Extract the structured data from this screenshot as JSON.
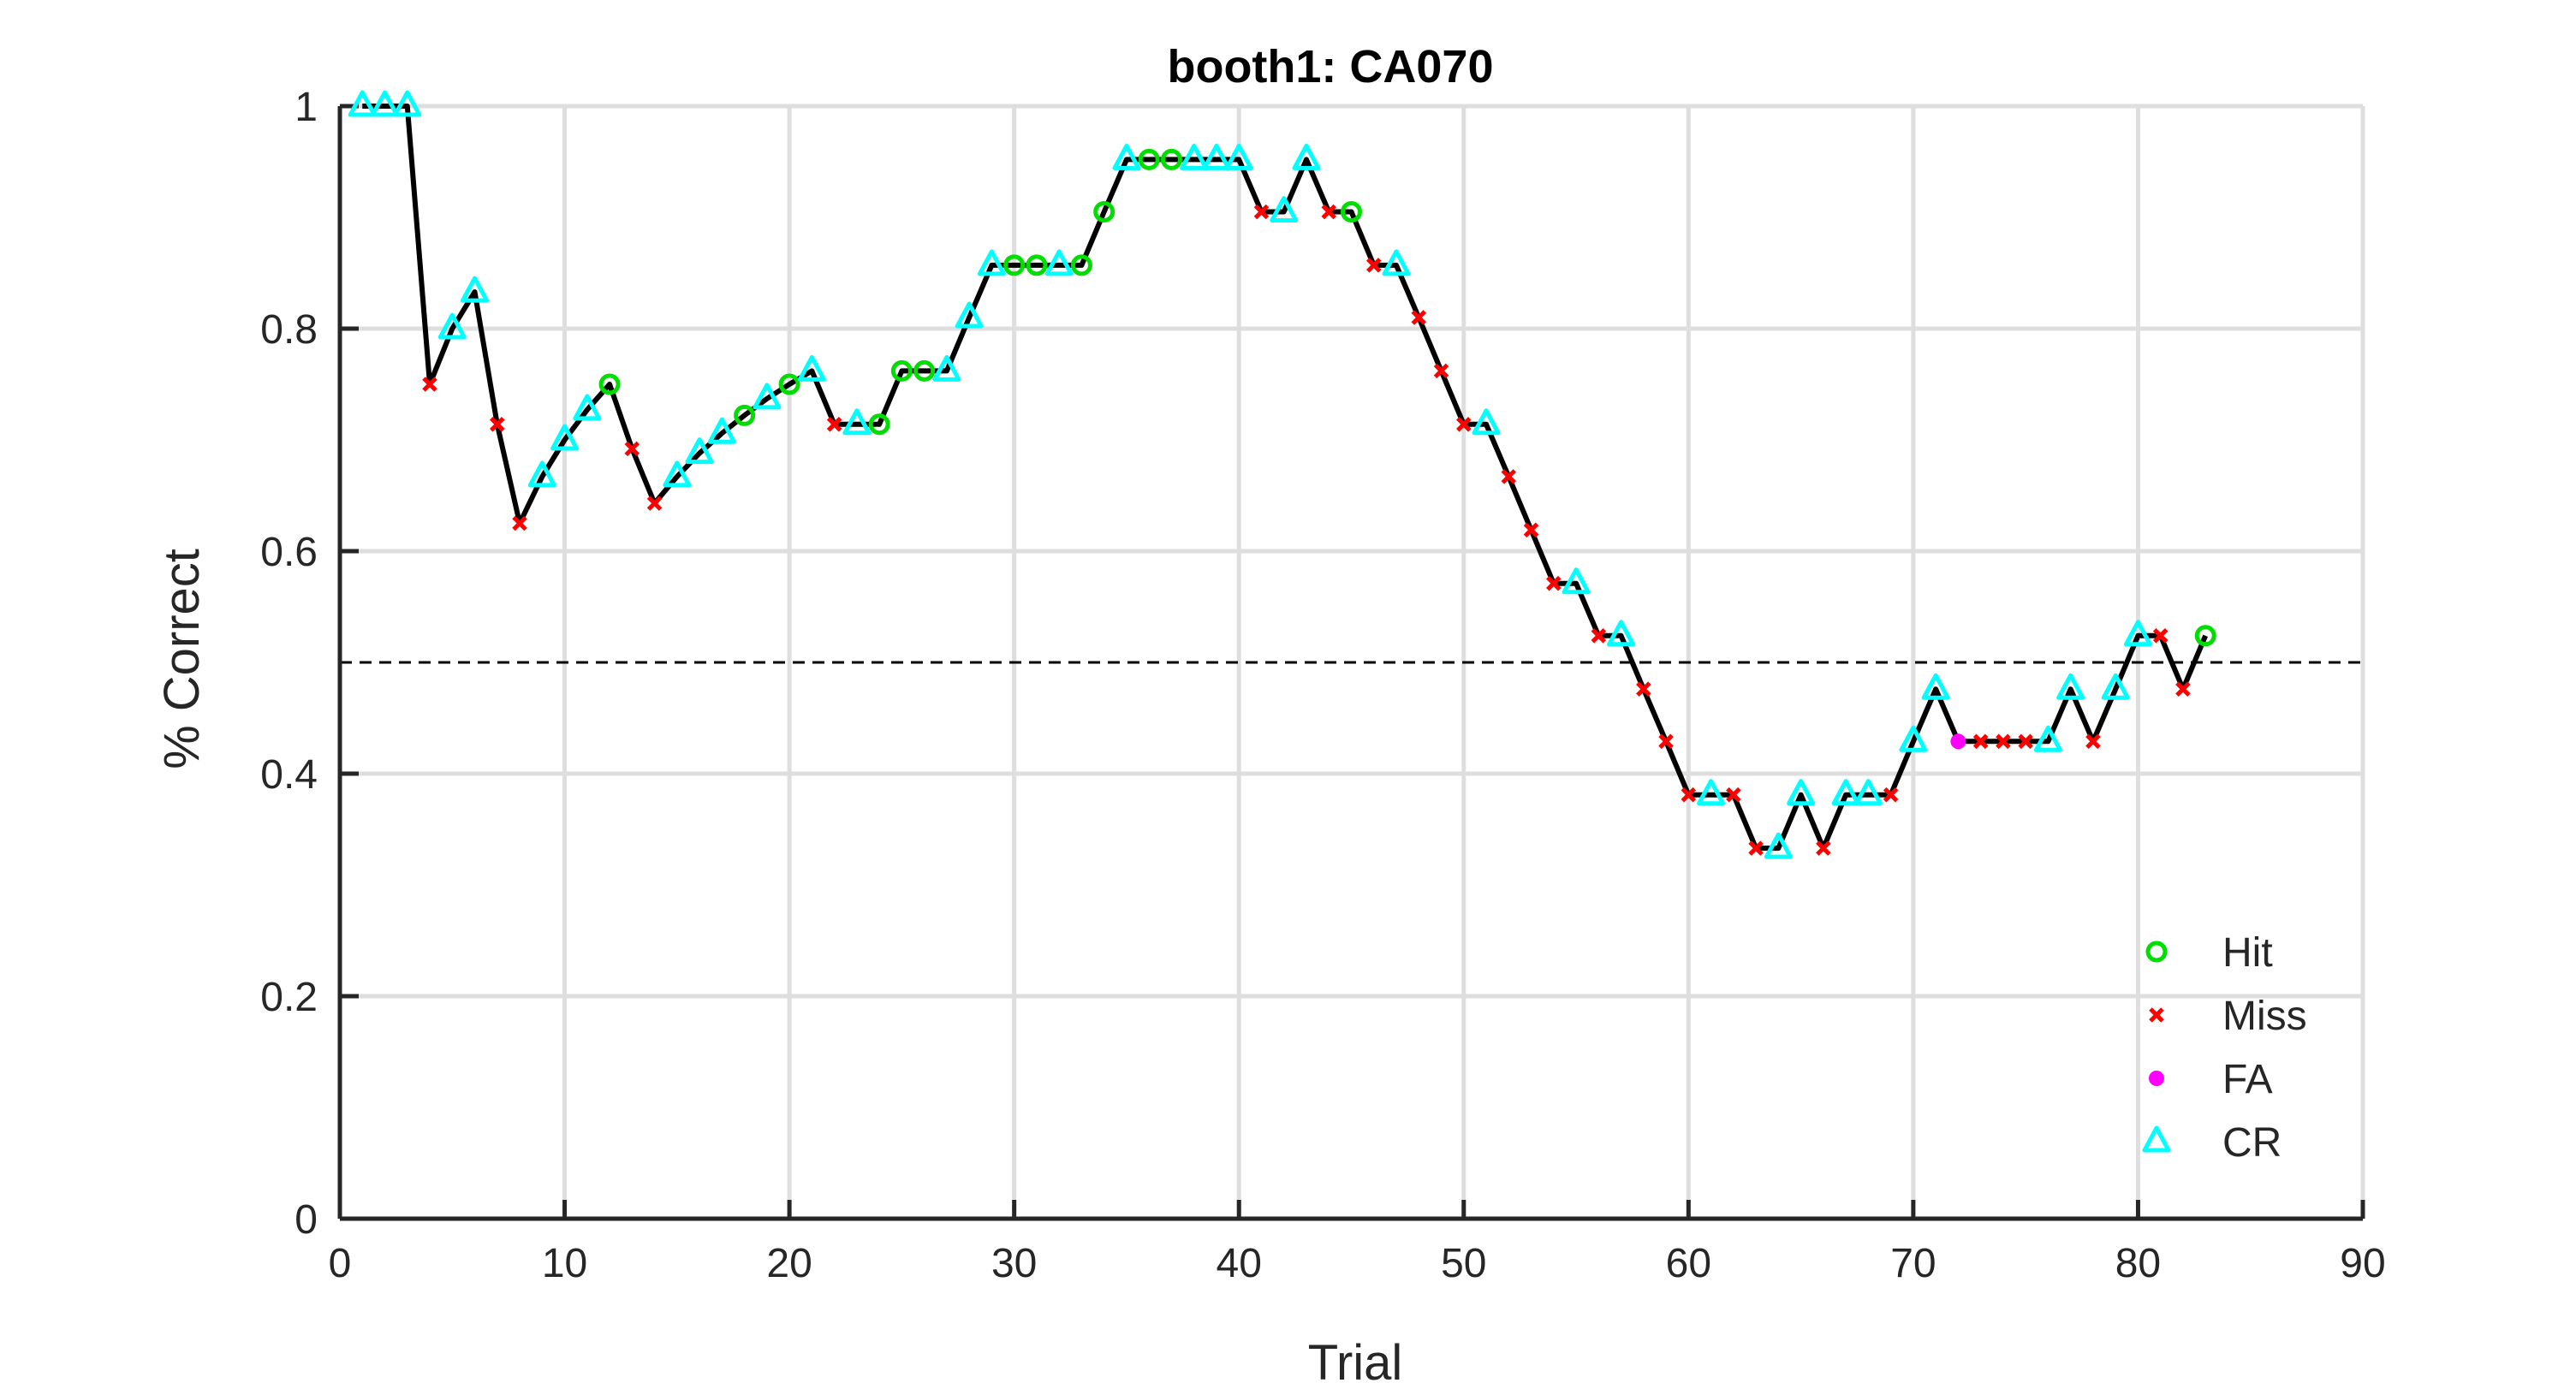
{
  "chart_data": {
    "type": "line",
    "title": "booth1: CA070",
    "xlabel": "Trial",
    "ylabel": "% Correct",
    "xlim": [
      0,
      90
    ],
    "ylim": [
      0,
      1
    ],
    "xticks": [
      0,
      10,
      20,
      30,
      40,
      50,
      60,
      70,
      80,
      90
    ],
    "yticks": [
      0,
      0.2,
      0.4,
      0.6,
      0.8,
      1
    ],
    "xtick_labels": [
      "0",
      "10",
      "20",
      "30",
      "40",
      "50",
      "60",
      "70",
      "80",
      "90"
    ],
    "ytick_labels": [
      "0",
      "0.2",
      "0.4",
      "0.6",
      "0.8",
      "1"
    ],
    "grid": true,
    "reference_line": {
      "y": 0.5,
      "style": "dashed",
      "color": "#000000"
    },
    "legend_position": "bottom-right",
    "legend": [
      {
        "key": "Hit",
        "label": "Hit",
        "marker": "circle-open",
        "color": "#00DD00"
      },
      {
        "key": "Miss",
        "label": "Miss",
        "marker": "x",
        "color": "#FF0000"
      },
      {
        "key": "FA",
        "label": "FA",
        "marker": "dot",
        "color": "#FF00FF"
      },
      {
        "key": "CR",
        "label": "CR",
        "marker": "triangle-open",
        "color": "#00FFFF"
      }
    ],
    "line_color": "#000000",
    "series": [
      {
        "name": "% Correct",
        "x": [
          1,
          2,
          3,
          4,
          5,
          6,
          7,
          8,
          9,
          10,
          11,
          12,
          13,
          14,
          15,
          16,
          17,
          18,
          19,
          20,
          21,
          22,
          23,
          24,
          25,
          26,
          27,
          28,
          29,
          30,
          31,
          32,
          33,
          34,
          35,
          36,
          37,
          38,
          39,
          40,
          41,
          42,
          43,
          44,
          45,
          46,
          47,
          48,
          49,
          50,
          51,
          52,
          53,
          54,
          55,
          56,
          57,
          58,
          59,
          60,
          61,
          62,
          63,
          64,
          65,
          66,
          67,
          68,
          69,
          70,
          71,
          72,
          73,
          74,
          75,
          76,
          77,
          78,
          79,
          80,
          81,
          82,
          83
        ],
        "y": [
          1,
          1,
          1,
          0.75,
          0.8,
          0.833,
          0.714,
          0.625,
          0.667,
          0.7,
          0.727,
          0.75,
          0.692,
          0.643,
          0.667,
          0.688,
          0.706,
          0.722,
          0.737,
          0.75,
          0.762,
          0.714,
          0.714,
          0.714,
          0.762,
          0.762,
          0.762,
          0.81,
          0.857,
          0.857,
          0.857,
          0.857,
          0.857,
          0.905,
          0.952,
          0.952,
          0.952,
          0.952,
          0.952,
          0.952,
          0.905,
          0.905,
          0.952,
          0.905,
          0.905,
          0.857,
          0.857,
          0.81,
          0.762,
          0.714,
          0.714,
          0.667,
          0.619,
          0.571,
          0.571,
          0.524,
          0.524,
          0.476,
          0.429,
          0.381,
          0.381,
          0.381,
          0.333,
          0.333,
          0.381,
          0.333,
          0.381,
          0.381,
          0.381,
          0.429,
          0.476,
          0.429,
          0.429,
          0.429,
          0.429,
          0.429,
          0.476,
          0.429,
          0.476,
          0.524,
          0.524,
          0.476,
          0.524
        ],
        "outcome": [
          "CR",
          "CR",
          "CR",
          "Miss",
          "CR",
          "CR",
          "Miss",
          "Miss",
          "CR",
          "CR",
          "CR",
          "Hit",
          "Miss",
          "Miss",
          "CR",
          "CR",
          "CR",
          "Hit",
          "CR",
          "Hit",
          "CR",
          "Miss",
          "CR",
          "Hit",
          "Hit",
          "Hit",
          "CR",
          "CR",
          "CR",
          "Hit",
          "Hit",
          "CR",
          "Hit",
          "Hit",
          "CR",
          "Hit",
          "Hit",
          "CR",
          "CR",
          "CR",
          "Miss",
          "CR",
          "CR",
          "Miss",
          "Hit",
          "Miss",
          "CR",
          "Miss",
          "Miss",
          "Miss",
          "CR",
          "Miss",
          "Miss",
          "Miss",
          "CR",
          "Miss",
          "CR",
          "Miss",
          "Miss",
          "Miss",
          "CR",
          "Miss",
          "Miss",
          "CR",
          "CR",
          "Miss",
          "CR",
          "CR",
          "Miss",
          "CR",
          "CR",
          "FA",
          "Miss",
          "Miss",
          "Miss",
          "CR",
          "CR",
          "Miss",
          "CR",
          "CR",
          "Miss",
          "Miss",
          "Hit"
        ]
      }
    ]
  }
}
